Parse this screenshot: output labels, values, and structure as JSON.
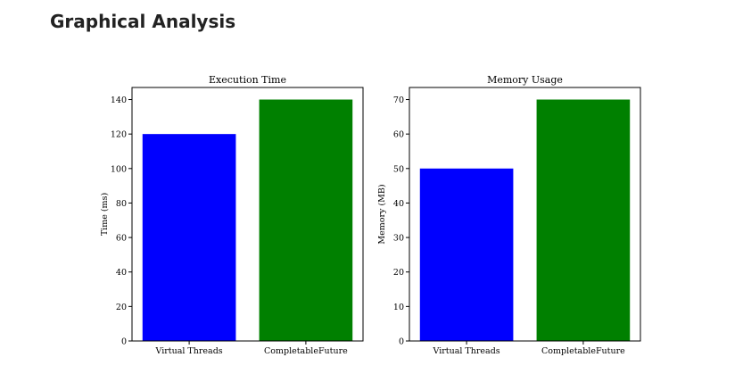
{
  "page": {
    "heading": "Graphical Analysis"
  },
  "chart_data": [
    {
      "type": "bar",
      "title": "Execution Time",
      "xlabel": "",
      "ylabel": "Time (ms)",
      "categories": [
        "Virtual Threads",
        "CompletableFuture"
      ],
      "values": [
        120,
        140
      ],
      "colors": [
        "#0000ff",
        "#008000"
      ],
      "ylim": [
        0,
        147
      ],
      "yticks": [
        0,
        20,
        40,
        60,
        80,
        100,
        120,
        140
      ],
      "grid": false,
      "legend": "none"
    },
    {
      "type": "bar",
      "title": "Memory Usage",
      "xlabel": "",
      "ylabel": "Memory (MB)",
      "categories": [
        "Virtual Threads",
        "CompletableFuture"
      ],
      "values": [
        50,
        70
      ],
      "colors": [
        "#0000ff",
        "#008000"
      ],
      "ylim": [
        0,
        73.5
      ],
      "yticks": [
        0,
        10,
        20,
        30,
        40,
        50,
        60,
        70
      ],
      "grid": false,
      "legend": "none"
    }
  ]
}
